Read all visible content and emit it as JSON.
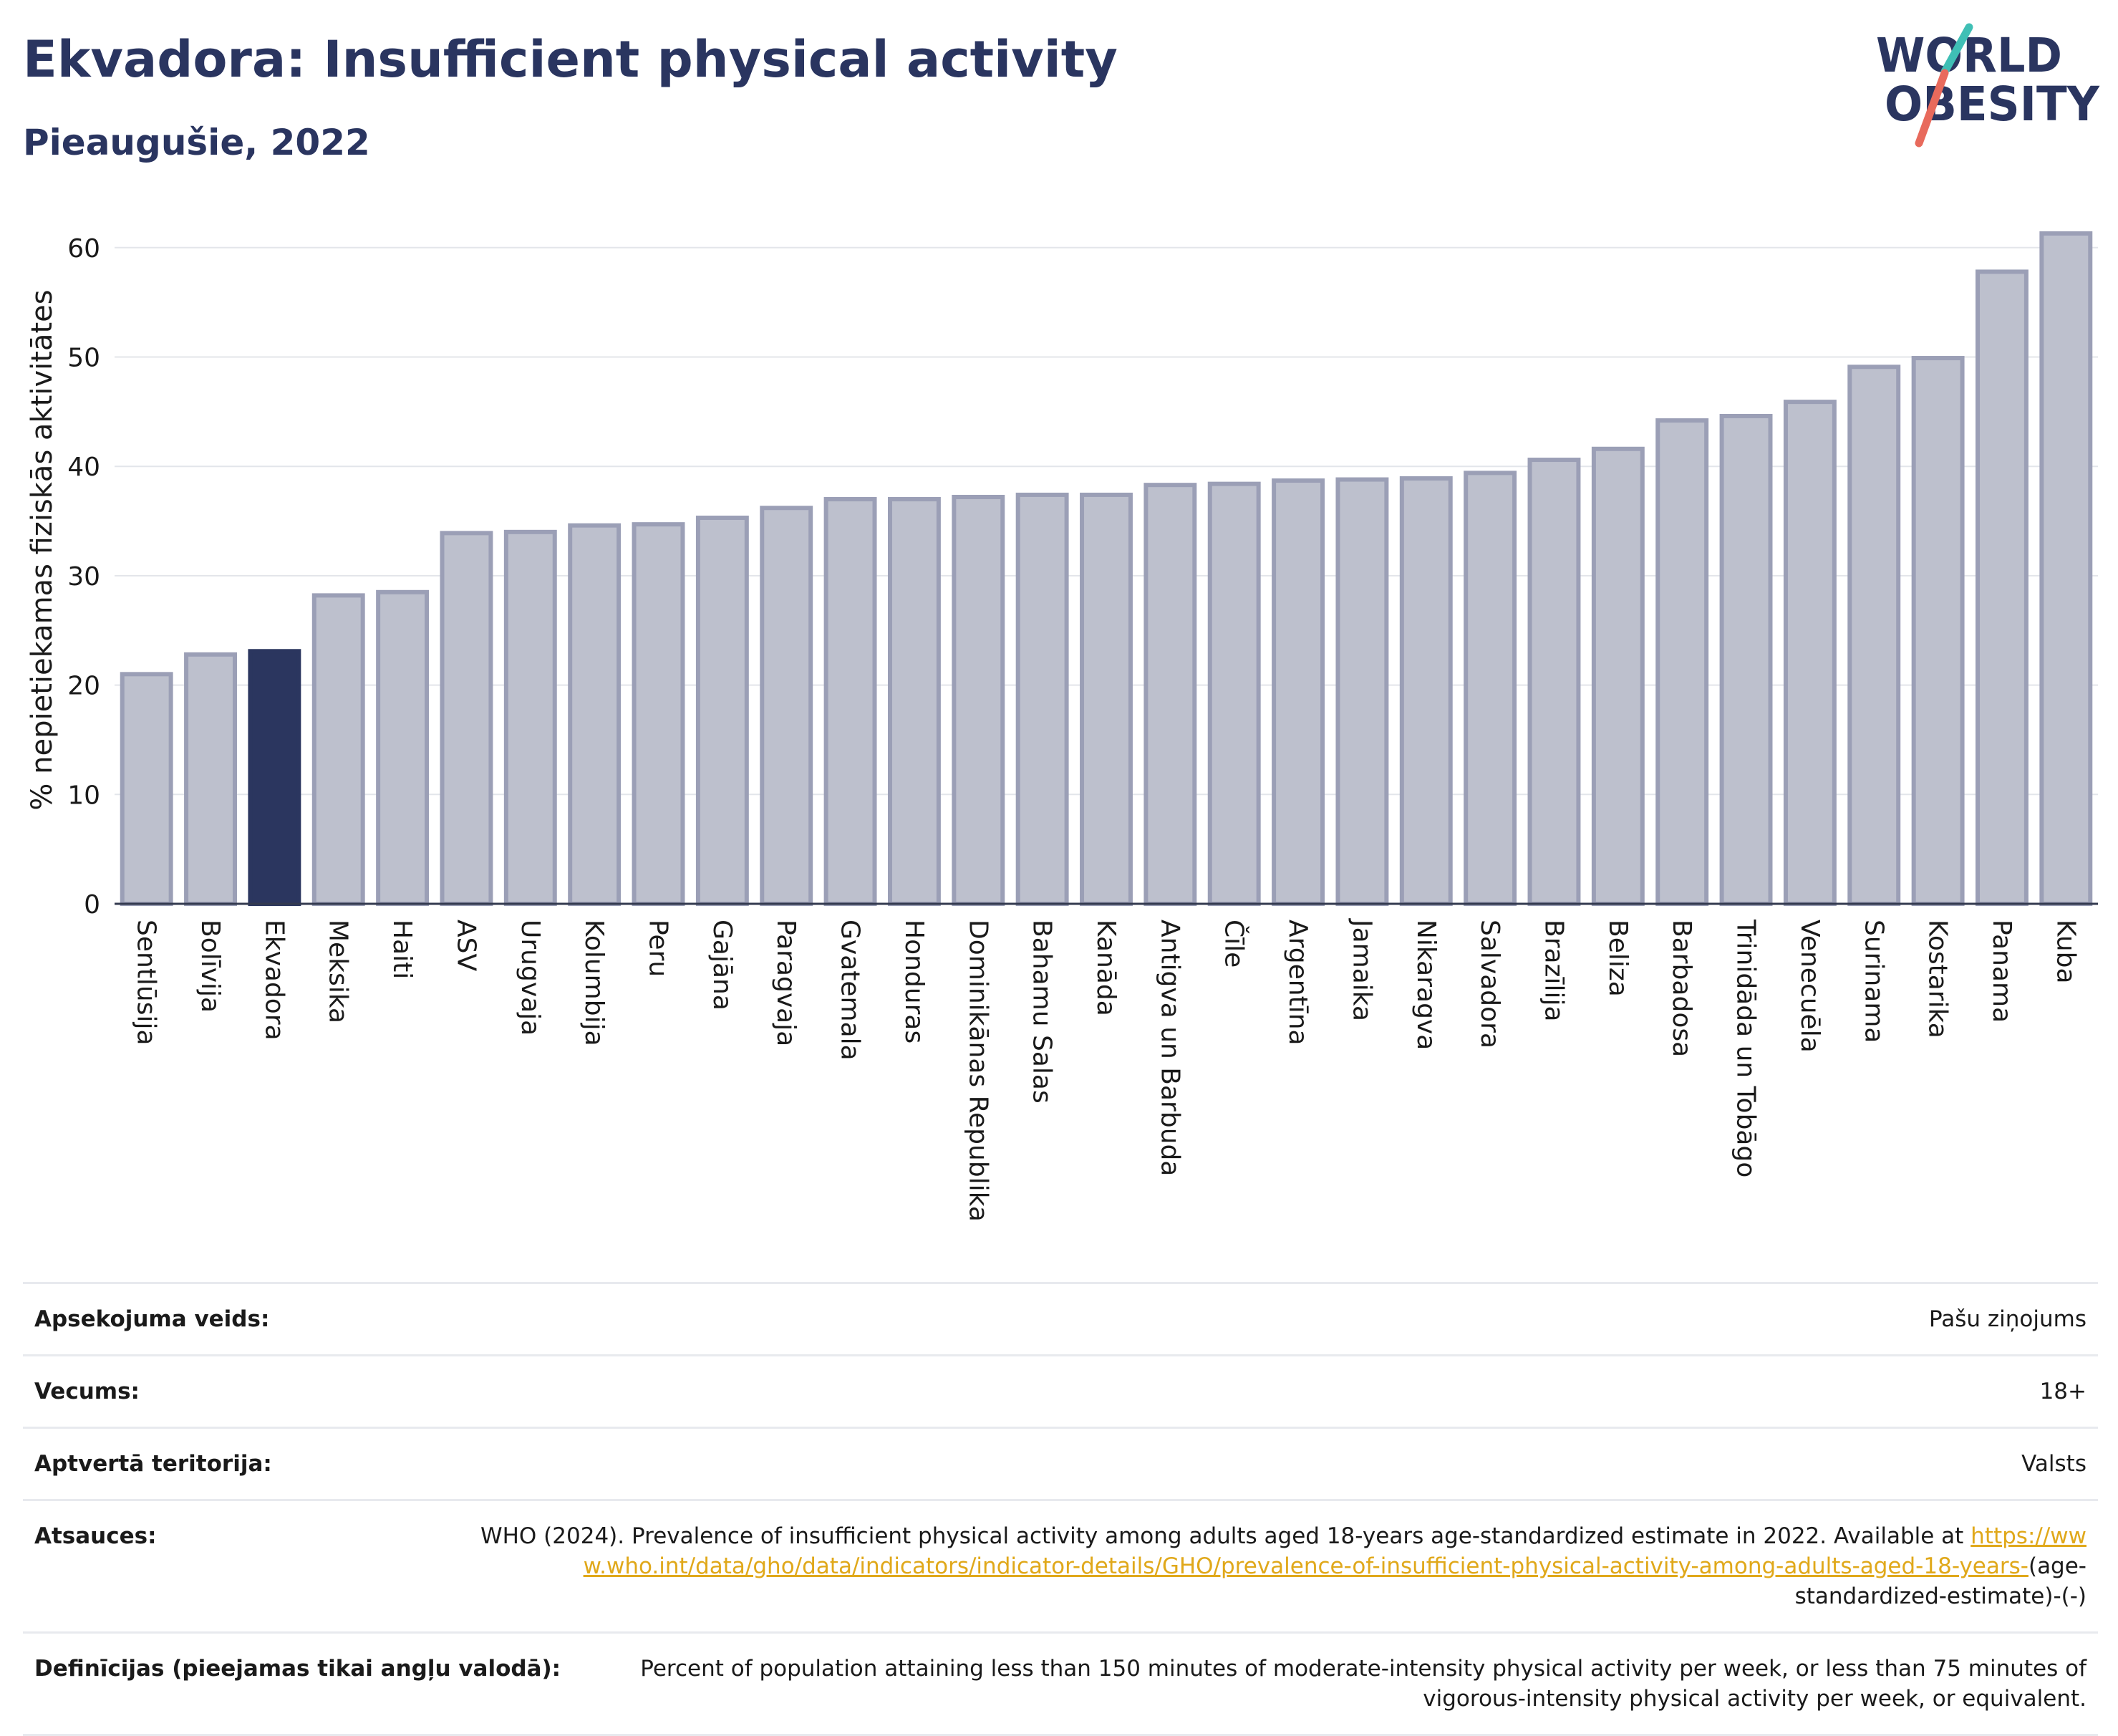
{
  "header": {
    "title": "Ekvadora: Insufficient physical activity",
    "subtitle": "Pieaugušie, 2022",
    "logo": {
      "line1": "WORLD",
      "line2": "OBESITY"
    }
  },
  "colors": {
    "title": "#2a3560",
    "highlight_bar": "#2b365f",
    "bar_fill": "#bdc0cd",
    "bar_stroke": "#9b9fb6",
    "link": "#e0a81a",
    "logo_slash_teal": "#3fbfb5",
    "logo_slash_coral": "#e86a5c"
  },
  "chart_data": {
    "type": "bar",
    "title": "Ekvadora: Insufficient physical activity",
    "subtitle": "Pieaugušie, 2022",
    "ylabel": "% nepietiekamas fiziskās aktivitātes",
    "xlabel": "",
    "ylim": [
      0,
      63
    ],
    "yticks": [
      0,
      10,
      20,
      30,
      40,
      50,
      60
    ],
    "grid": true,
    "highlight": "Ekvadora",
    "categories": [
      "Sentlūsija",
      "Bolīvija",
      "Ekvadora",
      "Meksika",
      "Haiti",
      "ASV",
      "Urugvaja",
      "Kolumbija",
      "Peru",
      "Gajāna",
      "Paragvaja",
      "Gvatemala",
      "Honduras",
      "Dominikānas Republika",
      "Bahamu Salas",
      "Kanāda",
      "Antigva un Barbuda",
      "Čīle",
      "Argentīna",
      "Jamaika",
      "Nikaragva",
      "Salvadora",
      "Brazīlija",
      "Beliza",
      "Barbadosa",
      "Trinidāda un Tobāgo",
      "Venecuēla",
      "Surinama",
      "Kostarika",
      "Panama",
      "Kuba"
    ],
    "values": [
      21.0,
      22.8,
      23.1,
      28.2,
      28.5,
      33.9,
      34.0,
      34.6,
      34.7,
      35.3,
      36.2,
      37.0,
      37.0,
      37.2,
      37.4,
      37.4,
      38.3,
      38.4,
      38.7,
      38.8,
      38.9,
      39.4,
      40.6,
      41.6,
      44.2,
      44.6,
      45.9,
      49.1,
      49.9,
      57.8,
      61.3
    ]
  },
  "meta": [
    {
      "label": "Apsekojuma veids:",
      "value": "Pašu ziņojums"
    },
    {
      "label": "Vecums:",
      "value": "18+"
    },
    {
      "label": "Aptvertā teritorija:",
      "value": "Valsts"
    },
    {
      "label": "Atsauces:",
      "value_before": "WHO (2024). Prevalence of insufficient physical activity among adults aged 18-years age-standardized estimate in 2022. Available at ",
      "link": "https://www.who.int/data/gho/data/indicators/indicator-details/GHO/prevalence-of-insufficient-physical-activity-among-adults-aged-18-years-",
      "value_after": "(age-standardized-estimate)-(-)"
    },
    {
      "label": "Definīcijas (pieejamas tikai angļu valodā):",
      "value": "Percent of population attaining less than 150 minutes of moderate-intensity physical activity per week, or less than 75 minutes of vigorous-intensity physical activity per week, or equivalent."
    }
  ]
}
